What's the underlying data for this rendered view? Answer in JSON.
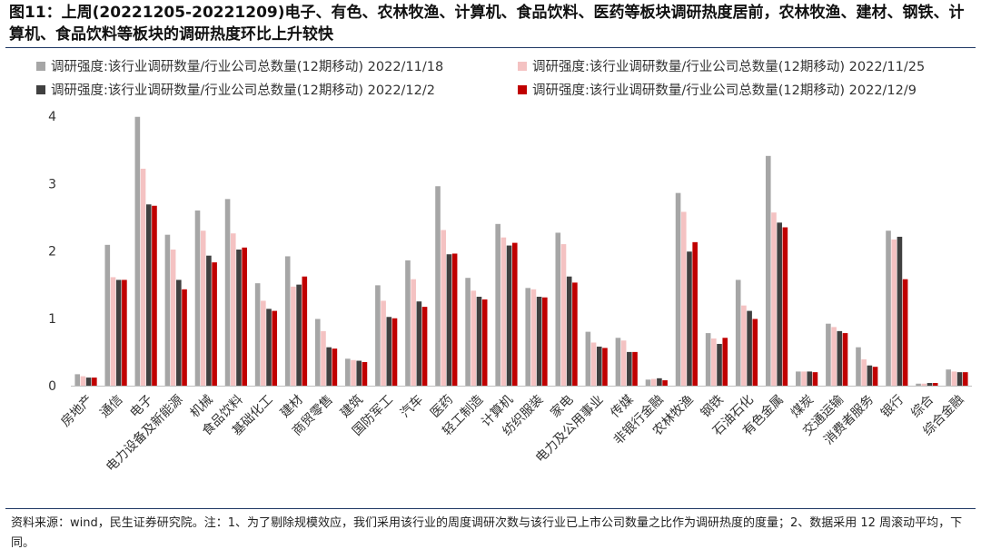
{
  "title": "图11：上周(20221205-20221209)电子、有色、农林牧渔、计算机、食品饮料、医药等板块调研热度居前，农林牧渔、建材、钢铁、计算机、食品饮料等板块的调研热度环比上升较快",
  "footnote": "资料来源：wind，民生证券研究院。注：1、为了剔除规模效应，我们采用该行业的周度调研次数与该行业已上市公司数量之比作为调研热度的度量；2、数据采用 12 周滚动平均，下同。",
  "chart_data": {
    "type": "bar",
    "title": "",
    "xlabel": "",
    "ylabel": "",
    "ylim": [
      0,
      4
    ],
    "yticks": [
      "0",
      "1",
      "2",
      "3",
      "4"
    ],
    "grid": false,
    "legend_position": "top",
    "categories": [
      "房地产",
      "通信",
      "电子",
      "电力设备及新能源",
      "机械",
      "食品饮料",
      "基础化工",
      "建材",
      "商贸零售",
      "建筑",
      "国防军工",
      "汽车",
      "医药",
      "轻工制造",
      "计算机",
      "纺织服装",
      "家电",
      "电力及公用事业",
      "传媒",
      "非银行金融",
      "农林牧渔",
      "钢铁",
      "石油石化",
      "有色金属",
      "煤炭",
      "交通运输",
      "消费者服务",
      "银行",
      "综合",
      "综合金融"
    ],
    "series": [
      {
        "name": "调研强度:该行业调研数量/行业公司总数量(12期移动) 2022/11/18",
        "color": "#a6a6a6",
        "values": [
          0.17,
          2.09,
          3.99,
          2.24,
          2.6,
          2.77,
          1.52,
          1.92,
          0.99,
          0.4,
          1.49,
          1.86,
          2.96,
          1.6,
          2.4,
          1.45,
          2.27,
          0.8,
          0.71,
          0.09,
          2.86,
          0.78,
          1.57,
          3.41,
          0.21,
          0.92,
          0.57,
          2.3,
          0.03,
          0.24
        ]
      },
      {
        "name": "调研强度:该行业调研数量/行业公司总数量(12期移动) 2022/11/25",
        "color": "#f4c2c2",
        "values": [
          0.14,
          1.61,
          3.22,
          2.02,
          2.3,
          2.26,
          1.26,
          1.47,
          0.81,
          0.38,
          1.26,
          1.58,
          2.31,
          1.41,
          2.2,
          1.43,
          2.1,
          0.64,
          0.67,
          0.1,
          2.58,
          0.7,
          1.19,
          2.57,
          0.21,
          0.87,
          0.39,
          2.17,
          0.03,
          0.21
        ]
      },
      {
        "name": "调研强度:该行业调研数量/行业公司总数量(12期移动) 2022/12/2",
        "color": "#404040",
        "values": [
          0.12,
          1.57,
          2.69,
          1.57,
          1.93,
          2.02,
          1.14,
          1.5,
          0.57,
          0.37,
          1.02,
          1.25,
          1.95,
          1.32,
          2.08,
          1.32,
          1.62,
          0.58,
          0.5,
          0.11,
          1.99,
          0.62,
          1.11,
          2.42,
          0.21,
          0.81,
          0.3,
          2.21,
          0.04,
          0.2
        ]
      },
      {
        "name": "调研强度:该行业调研数量/行业公司总数量(12期移动) 2022/12/9",
        "color": "#c00000",
        "values": [
          0.12,
          1.57,
          2.67,
          1.43,
          1.83,
          2.05,
          1.11,
          1.62,
          0.55,
          0.35,
          1.0,
          1.17,
          1.96,
          1.28,
          2.12,
          1.31,
          1.53,
          0.56,
          0.5,
          0.08,
          2.13,
          0.71,
          0.99,
          2.35,
          0.2,
          0.78,
          0.28,
          1.58,
          0.04,
          0.2
        ]
      }
    ]
  }
}
